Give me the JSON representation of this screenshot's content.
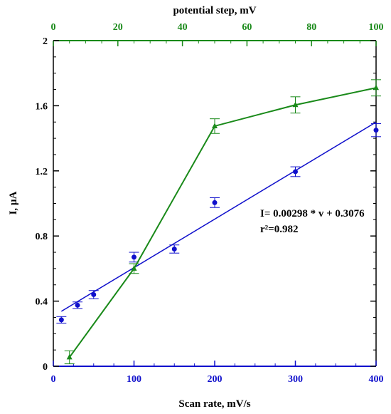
{
  "colors": {
    "blue": "#1010cc",
    "green": "#1a8a1a",
    "frame": "#000000"
  },
  "chart_data": {
    "type": "scatter",
    "xlabel": "Scan rate, mV/s",
    "x2label": "potential step, mV",
    "ylabel": "I, µA",
    "xlim": [
      0,
      400
    ],
    "x2lim": [
      0,
      100
    ],
    "ylim": [
      0,
      2
    ],
    "xticks": [
      0,
      100,
      200,
      300,
      400
    ],
    "x2ticks": [
      0,
      20,
      40,
      60,
      80,
      100
    ],
    "yticks": [
      0,
      0.4,
      0.8,
      1.2,
      1.6,
      2
    ],
    "xtick_labels": [
      "0",
      "100",
      "200",
      "300",
      "400"
    ],
    "x2tick_labels": [
      "0",
      "20",
      "40",
      "60",
      "80",
      "100"
    ],
    "ytick_labels": [
      "0",
      "0.4",
      "0.8",
      "1.2",
      "1.6",
      "2"
    ],
    "grid": false,
    "series": [
      {
        "axis": "bottom",
        "marker": "circle",
        "color": "#1010cc",
        "points": [
          {
            "x": 10,
            "y": 0.285,
            "err": 0.02
          },
          {
            "x": 30,
            "y": 0.375,
            "err": 0.02
          },
          {
            "x": 50,
            "y": 0.44,
            "err": 0.025
          },
          {
            "x": 100,
            "y": 0.67,
            "err": 0.03
          },
          {
            "x": 150,
            "y": 0.72,
            "err": 0.025
          },
          {
            "x": 200,
            "y": 1.005,
            "err": 0.03
          },
          {
            "x": 300,
            "y": 1.195,
            "err": 0.03
          },
          {
            "x": 400,
            "y": 1.45,
            "err": 0.04
          }
        ],
        "fit": {
          "slope": 0.00298,
          "intercept": 0.3076,
          "x_from": 10,
          "x_to": 400
        }
      },
      {
        "axis": "top",
        "marker": "triangle",
        "color": "#1a8a1a",
        "points": [
          {
            "x": 5,
            "y": 0.055,
            "err": 0.04
          },
          {
            "x": 25,
            "y": 0.6,
            "err": 0.03
          },
          {
            "x": 50,
            "y": 1.475,
            "err": 0.045
          },
          {
            "x": 75,
            "y": 1.605,
            "err": 0.05
          },
          {
            "x": 100,
            "y": 1.71,
            "err": 0.05
          }
        ],
        "connect": true
      }
    ],
    "annotations": [
      "I= 0.00298 * v + 0.3076",
      "r²=0.982"
    ]
  }
}
